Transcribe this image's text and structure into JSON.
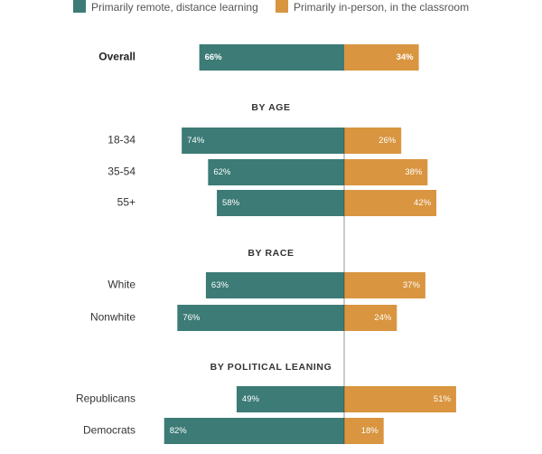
{
  "legend": {
    "remote_label": "Primarily remote, distance learning",
    "inperson_label": "Primarily in-person, in the classroom"
  },
  "colors": {
    "remote": "#3c7b76",
    "inperson": "#d9953f"
  },
  "chart_data": {
    "type": "bar",
    "orientation": "horizontal-diverging",
    "series": [
      {
        "name": "Primarily remote, distance learning",
        "key": "remote"
      },
      {
        "name": "Primarily in-person, in the classroom",
        "key": "inperson"
      }
    ],
    "groups": [
      {
        "title": "",
        "rows": [
          {
            "label": "Overall",
            "remote": 66,
            "inperson": 34,
            "remote_text": "66%",
            "inperson_text": "34%",
            "emphasis": true
          }
        ]
      },
      {
        "title": "BY AGE",
        "rows": [
          {
            "label": "18-34",
            "remote": 74,
            "inperson": 26,
            "remote_text": "74%",
            "inperson_text": "26%"
          },
          {
            "label": "35-54",
            "remote": 62,
            "inperson": 38,
            "remote_text": "62%",
            "inperson_text": "38%"
          },
          {
            "label": "55+",
            "remote": 58,
            "inperson": 42,
            "remote_text": "58%",
            "inperson_text": "42%"
          }
        ]
      },
      {
        "title": "BY RACE",
        "rows": [
          {
            "label": "White",
            "remote": 63,
            "inperson": 37,
            "remote_text": "63%",
            "inperson_text": "37%"
          },
          {
            "label": "Nonwhite",
            "remote": 76,
            "inperson": 24,
            "remote_text": "76%",
            "inperson_text": "24%"
          }
        ]
      },
      {
        "title": "BY POLITICAL LEANING",
        "rows": [
          {
            "label": "Republicans",
            "remote": 49,
            "inperson": 51,
            "remote_text": "49%",
            "inperson_text": "51%"
          },
          {
            "label": "Democrats",
            "remote": 82,
            "inperson": 18,
            "remote_text": "82%",
            "inperson_text": "18%"
          }
        ]
      }
    ]
  }
}
